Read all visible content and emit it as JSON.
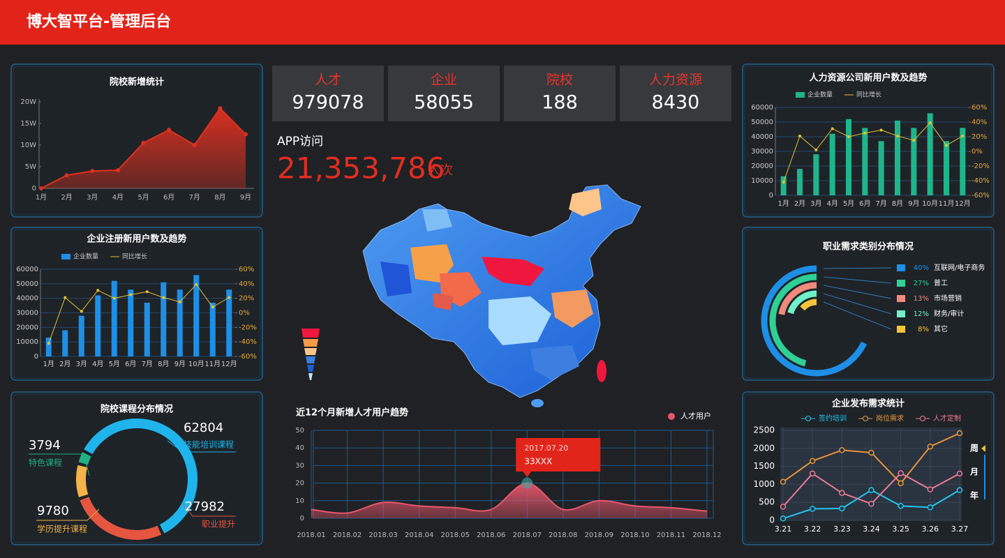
{
  "header": {
    "title": "博大智平台-管理后台"
  },
  "stats": [
    {
      "label": "人才",
      "value": 979078
    },
    {
      "label": "企业",
      "value": 58055
    },
    {
      "label": "院校",
      "value": 188
    },
    {
      "label": "人力资源",
      "value": 8430
    }
  ],
  "app_visits": {
    "title": "APP访问",
    "value": "21,353,786",
    "unit": "人次"
  },
  "chart_data": [
    {
      "type": "area",
      "title": "院校新增统计",
      "categories": [
        "1月",
        "2月",
        "3月",
        "4月",
        "5月",
        "6月",
        "7月",
        "8月",
        "9月"
      ],
      "values": [
        0,
        3,
        4,
        4.2,
        10.5,
        13.5,
        10,
        18.5,
        12.5
      ],
      "color": "#e0301f",
      "ylim": [
        0,
        20
      ],
      "yticks": [
        0,
        {
          "value": 5,
          "label": "5W"
        },
        {
          "value": 10,
          "label": "10W"
        },
        {
          "value": 15,
          "label": "15W"
        },
        {
          "value": 20,
          "label": "20W"
        }
      ],
      "grid": false,
      "smooth": false
    },
    {
      "type": "combo",
      "title": "企业注册新用户数及趋势",
      "categories": [
        "1月",
        "2月",
        "3月",
        "4月",
        "5月",
        "6月",
        "7月",
        "8月",
        "9月",
        "10月",
        "11月",
        "12月"
      ],
      "series": [
        {
          "name": "企业数量",
          "type": "bar",
          "color": "#1e8fe6",
          "values": [
            13000,
            18000,
            28000,
            42000,
            52000,
            46000,
            37000,
            51000,
            46000,
            56000,
            37000,
            46000
          ]
        },
        {
          "name": "同比增长",
          "type": "line",
          "axis": "y2",
          "color": "#e6c230",
          "values": [
            -42,
            21,
            2,
            31,
            20,
            25,
            29,
            21,
            15,
            39,
            8,
            21
          ]
        }
      ],
      "ylim": [
        0,
        60000
      ],
      "yticks": [
        0,
        10000,
        20000,
        30000,
        40000,
        50000,
        60000
      ],
      "y2lim": [
        -60,
        60
      ],
      "y2ticks": [
        {
          "value": -60,
          "label": "-60%"
        },
        {
          "value": -40,
          "label": "-40%"
        },
        {
          "value": -20,
          "label": "-20%"
        },
        {
          "value": 0,
          "label": "0%"
        },
        {
          "value": 20,
          "label": "20%"
        },
        {
          "value": 40,
          "label": "40%"
        },
        {
          "value": 60,
          "label": "60%"
        }
      ],
      "grid": true
    },
    {
      "type": "combo",
      "title": "人力资源公司新用户数及趋势",
      "categories": [
        "1月",
        "2月",
        "3月",
        "4月",
        "5月",
        "6月",
        "7月",
        "8月",
        "9月",
        "10月",
        "11月",
        "12月"
      ],
      "series": [
        {
          "name": "企业数量",
          "type": "bar",
          "color": "#1fb58b",
          "values": [
            13000,
            18000,
            28000,
            42000,
            52000,
            46000,
            37000,
            51000,
            46000,
            56000,
            37000,
            46000
          ]
        },
        {
          "name": "同比增长",
          "type": "line",
          "axis": "y2",
          "color": "#e6c230",
          "values": [
            -42,
            21,
            2,
            31,
            20,
            25,
            29,
            21,
            15,
            39,
            8,
            21
          ]
        }
      ],
      "ylim": [
        0,
        60000
      ],
      "yticks": [
        0,
        10000,
        20000,
        30000,
        40000,
        50000,
        60000
      ],
      "y2lim": [
        -60,
        60
      ],
      "y2ticks": [
        {
          "value": -60,
          "label": "-60%"
        },
        {
          "value": -40,
          "label": "-40%"
        },
        {
          "value": -20,
          "label": "-20%"
        },
        {
          "value": 0,
          "label": "0%"
        },
        {
          "value": 20,
          "label": "20%"
        },
        {
          "value": 40,
          "label": "40%"
        },
        {
          "value": 60,
          "label": "60%"
        }
      ],
      "grid": true
    },
    {
      "type": "donut",
      "title": "院校课程分布情况",
      "categories": [
        "技能培训课程",
        "职业提升",
        "学历提升课程",
        "特色课程"
      ],
      "values": [
        62804,
        27982,
        9780,
        3794
      ],
      "colors": [
        "#1fb5ec",
        "#e5553f",
        "#f3b347",
        "#20b184"
      ]
    },
    {
      "type": "rings",
      "title": "职业需求类别分布情况",
      "categories": [
        "互联网/电子商务",
        "普工",
        "市场营销",
        "财务/审计",
        "其它"
      ],
      "values": [
        40,
        27,
        13,
        12,
        8
      ],
      "value_labels": [
        "40%",
        "27%",
        "13%",
        "12%",
        "8%"
      ],
      "colors": [
        "#1e8fe6",
        "#2fcf96",
        "#ef8a7c",
        "#6ff0c8",
        "#f5c63c"
      ]
    },
    {
      "type": "area",
      "title": "近12个月新增人才用户趋势",
      "categories": [
        "2018.01",
        "2018.02",
        "2018.03",
        "2018.04",
        "2018.05",
        "2018.06",
        "2018.07",
        "2018.08",
        "2018.09",
        "2018.10",
        "2018.11",
        "2018.12"
      ],
      "series": [
        {
          "name": "人才用户",
          "color": "#e8566c",
          "values": [
            5,
            3,
            9,
            7,
            6,
            5,
            20,
            5,
            10,
            7,
            6,
            4
          ]
        }
      ],
      "ylim": [
        0,
        50
      ],
      "yticks": [
        0,
        10,
        20,
        30,
        40,
        50
      ],
      "grid": true,
      "smooth": true,
      "tooltip": {
        "date": "2017.07.20",
        "value": "33XXX"
      }
    },
    {
      "type": "line",
      "title": "企业发布需求统计",
      "categories": [
        "3.21",
        "3.22",
        "3.23",
        "3.24",
        "3.25",
        "3.26",
        "3.27"
      ],
      "series": [
        {
          "name": "签约培训",
          "color": "#1ec8f0",
          "values": [
            50,
            320,
            330,
            840,
            400,
            360,
            840
          ]
        },
        {
          "name": "岗位需求",
          "color": "#e8953a",
          "values": [
            1070,
            1650,
            1950,
            1880,
            1030,
            2050,
            2420
          ]
        },
        {
          "name": "人才定制",
          "color": "#f07b94",
          "values": [
            380,
            1300,
            760,
            460,
            1310,
            860,
            1300
          ]
        }
      ],
      "ylim": [
        0,
        2500
      ],
      "yticks": [
        0,
        500,
        1000,
        1500,
        2000,
        2500
      ],
      "grid": true,
      "tabs": [
        "周",
        "月",
        "年"
      ]
    }
  ]
}
